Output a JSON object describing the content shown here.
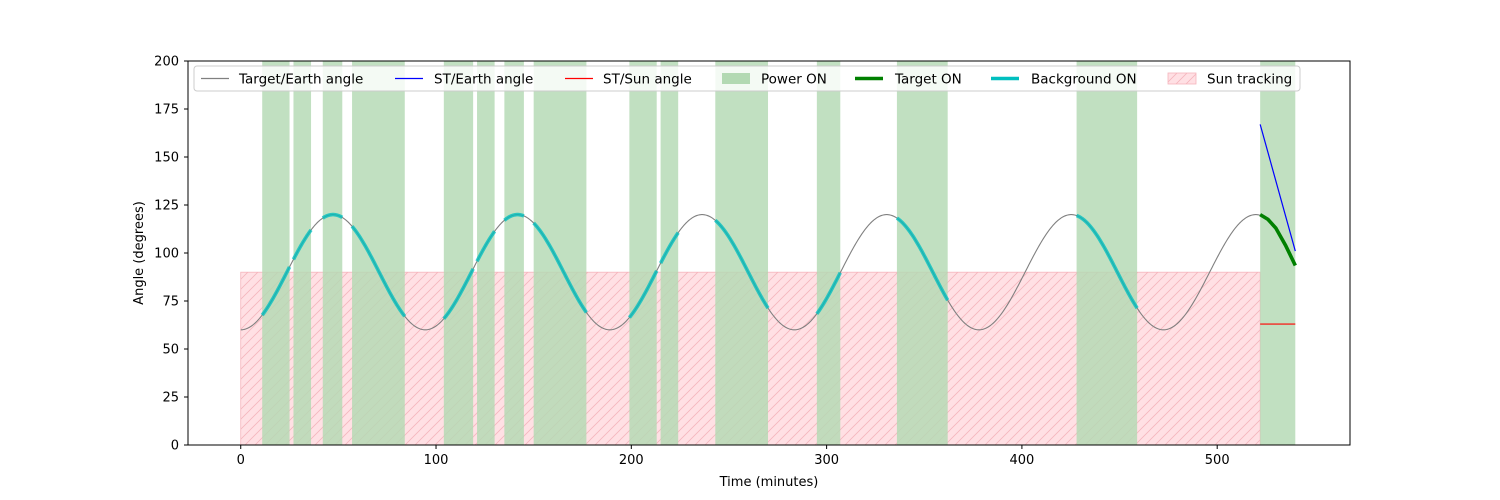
{
  "chart_data": {
    "type": "line",
    "title": "",
    "xlabel": "Time (minutes)",
    "ylabel": "Angle (degrees)",
    "xlim": [
      -27,
      568
    ],
    "ylim": [
      0,
      200
    ],
    "xticks": [
      0,
      100,
      200,
      300,
      400,
      500
    ],
    "yticks": [
      0,
      25,
      50,
      75,
      100,
      125,
      150,
      175,
      200
    ],
    "grid": false,
    "legend_position": "top",
    "colors": {
      "target_earth": "#808080",
      "st_earth": "#0000ff",
      "st_sun": "#ff0000",
      "power_on": "#b3d9b3",
      "target_on": "#008000",
      "background_on": "#00bfbf",
      "sun_tracking_fill": "#ffe0e4",
      "sun_tracking_hatch": "#f5b5bd"
    },
    "series": [
      {
        "name": "Target/Earth angle",
        "style": "line",
        "function": {
          "mean": 90,
          "amplitude": 30,
          "period_minutes": 94.5,
          "phase_start": "minimum"
        },
        "x_range": [
          0,
          522
        ]
      },
      {
        "name": "ST/Earth angle",
        "style": "line",
        "points": [
          [
            522,
            167
          ],
          [
            540,
            101
          ]
        ]
      },
      {
        "name": "ST/Sun angle",
        "style": "line",
        "points": [
          [
            522,
            63
          ],
          [
            540,
            63
          ]
        ]
      },
      {
        "name": "Power ON",
        "style": "span",
        "intervals": [
          [
            11,
            25
          ],
          [
            27,
            36
          ],
          [
            42,
            52
          ],
          [
            57,
            84
          ],
          [
            104,
            119
          ],
          [
            121,
            130
          ],
          [
            135,
            145
          ],
          [
            150,
            177
          ],
          [
            199,
            213
          ],
          [
            215,
            224
          ],
          [
            243,
            270
          ],
          [
            295,
            307
          ],
          [
            336,
            362
          ],
          [
            428,
            459
          ],
          [
            522,
            540
          ]
        ]
      },
      {
        "name": "Target ON",
        "style": "thick-line",
        "intervals": [
          [
            522,
            540
          ]
        ],
        "points": [
          [
            522,
            120
          ],
          [
            526,
            117.5
          ],
          [
            530,
            113
          ],
          [
            535,
            104
          ],
          [
            540,
            93.5
          ]
        ]
      },
      {
        "name": "Background ON",
        "style": "thick-line",
        "intervals": [
          [
            11,
            25
          ],
          [
            27,
            36
          ],
          [
            42,
            52
          ],
          [
            57,
            84
          ],
          [
            104,
            119
          ],
          [
            121,
            130
          ],
          [
            135,
            145
          ],
          [
            150,
            177
          ],
          [
            199,
            213
          ],
          [
            215,
            224
          ],
          [
            243,
            270
          ],
          [
            295,
            307
          ],
          [
            336,
            362
          ],
          [
            428,
            459
          ]
        ]
      },
      {
        "name": "Sun tracking",
        "style": "hatched-span",
        "x_range": [
          0,
          522
        ],
        "y_range": [
          0,
          90
        ]
      }
    ]
  }
}
